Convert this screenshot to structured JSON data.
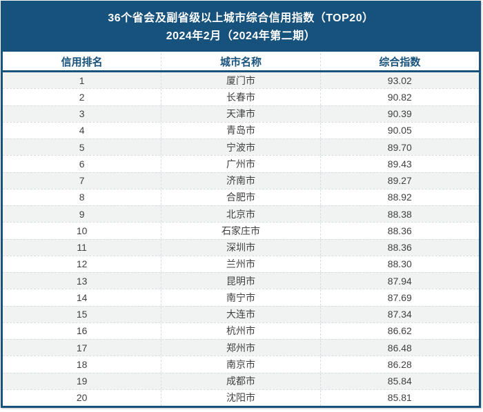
{
  "title": {
    "line1": "36个省会及副省级以上城市综合信用指数（TOP20）",
    "line2": "2024年2月（2024年第二期）"
  },
  "table": {
    "columns": [
      "信用排名",
      "城市名称",
      "综合指数"
    ],
    "rows": [
      {
        "rank": "1",
        "city": "厦门市",
        "index": "93.02"
      },
      {
        "rank": "2",
        "city": "长春市",
        "index": "90.82"
      },
      {
        "rank": "3",
        "city": "天津市",
        "index": "90.39"
      },
      {
        "rank": "4",
        "city": "青岛市",
        "index": "90.05"
      },
      {
        "rank": "5",
        "city": "宁波市",
        "index": "89.70"
      },
      {
        "rank": "6",
        "city": "广州市",
        "index": "89.43"
      },
      {
        "rank": "7",
        "city": "济南市",
        "index": "89.27"
      },
      {
        "rank": "8",
        "city": "合肥市",
        "index": "88.92"
      },
      {
        "rank": "9",
        "city": "北京市",
        "index": "88.38"
      },
      {
        "rank": "10",
        "city": "石家庄市",
        "index": "88.36"
      },
      {
        "rank": "11",
        "city": "深圳市",
        "index": "88.36"
      },
      {
        "rank": "12",
        "city": "兰州市",
        "index": "88.30"
      },
      {
        "rank": "13",
        "city": "昆明市",
        "index": "87.94"
      },
      {
        "rank": "14",
        "city": "南宁市",
        "index": "87.69"
      },
      {
        "rank": "15",
        "city": "大连市",
        "index": "87.34"
      },
      {
        "rank": "16",
        "city": "杭州市",
        "index": "86.62"
      },
      {
        "rank": "17",
        "city": "郑州市",
        "index": "86.48"
      },
      {
        "rank": "18",
        "city": "南京市",
        "index": "86.28"
      },
      {
        "rank": "19",
        "city": "成都市",
        "index": "85.84"
      },
      {
        "rank": "20",
        "city": "沈阳市",
        "index": "85.81"
      }
    ]
  },
  "colors": {
    "primary": "#17527C",
    "row_alt": "#F1F2F2",
    "dash": "#D5DDE2",
    "text": "#3F3F3F",
    "title_text": "#FFFFFF"
  },
  "chart_data": {
    "type": "table",
    "title": "36个省会及副省级以上城市综合信用指数（TOP20）",
    "subtitle": "2024年2月（2024年第二期）",
    "columns": [
      "信用排名",
      "城市名称",
      "综合指数"
    ],
    "rows": [
      [
        1,
        "厦门市",
        93.02
      ],
      [
        2,
        "长春市",
        90.82
      ],
      [
        3,
        "天津市",
        90.39
      ],
      [
        4,
        "青岛市",
        90.05
      ],
      [
        5,
        "宁波市",
        89.7
      ],
      [
        6,
        "广州市",
        89.43
      ],
      [
        7,
        "济南市",
        89.27
      ],
      [
        8,
        "合肥市",
        88.92
      ],
      [
        9,
        "北京市",
        88.38
      ],
      [
        10,
        "石家庄市",
        88.36
      ],
      [
        11,
        "深圳市",
        88.36
      ],
      [
        12,
        "兰州市",
        88.3
      ],
      [
        13,
        "昆明市",
        87.94
      ],
      [
        14,
        "南宁市",
        87.69
      ],
      [
        15,
        "大连市",
        87.34
      ],
      [
        16,
        "杭州市",
        86.62
      ],
      [
        17,
        "郑州市",
        86.48
      ],
      [
        18,
        "南京市",
        86.28
      ],
      [
        19,
        "成都市",
        85.84
      ],
      [
        20,
        "沈阳市",
        85.81
      ]
    ]
  }
}
